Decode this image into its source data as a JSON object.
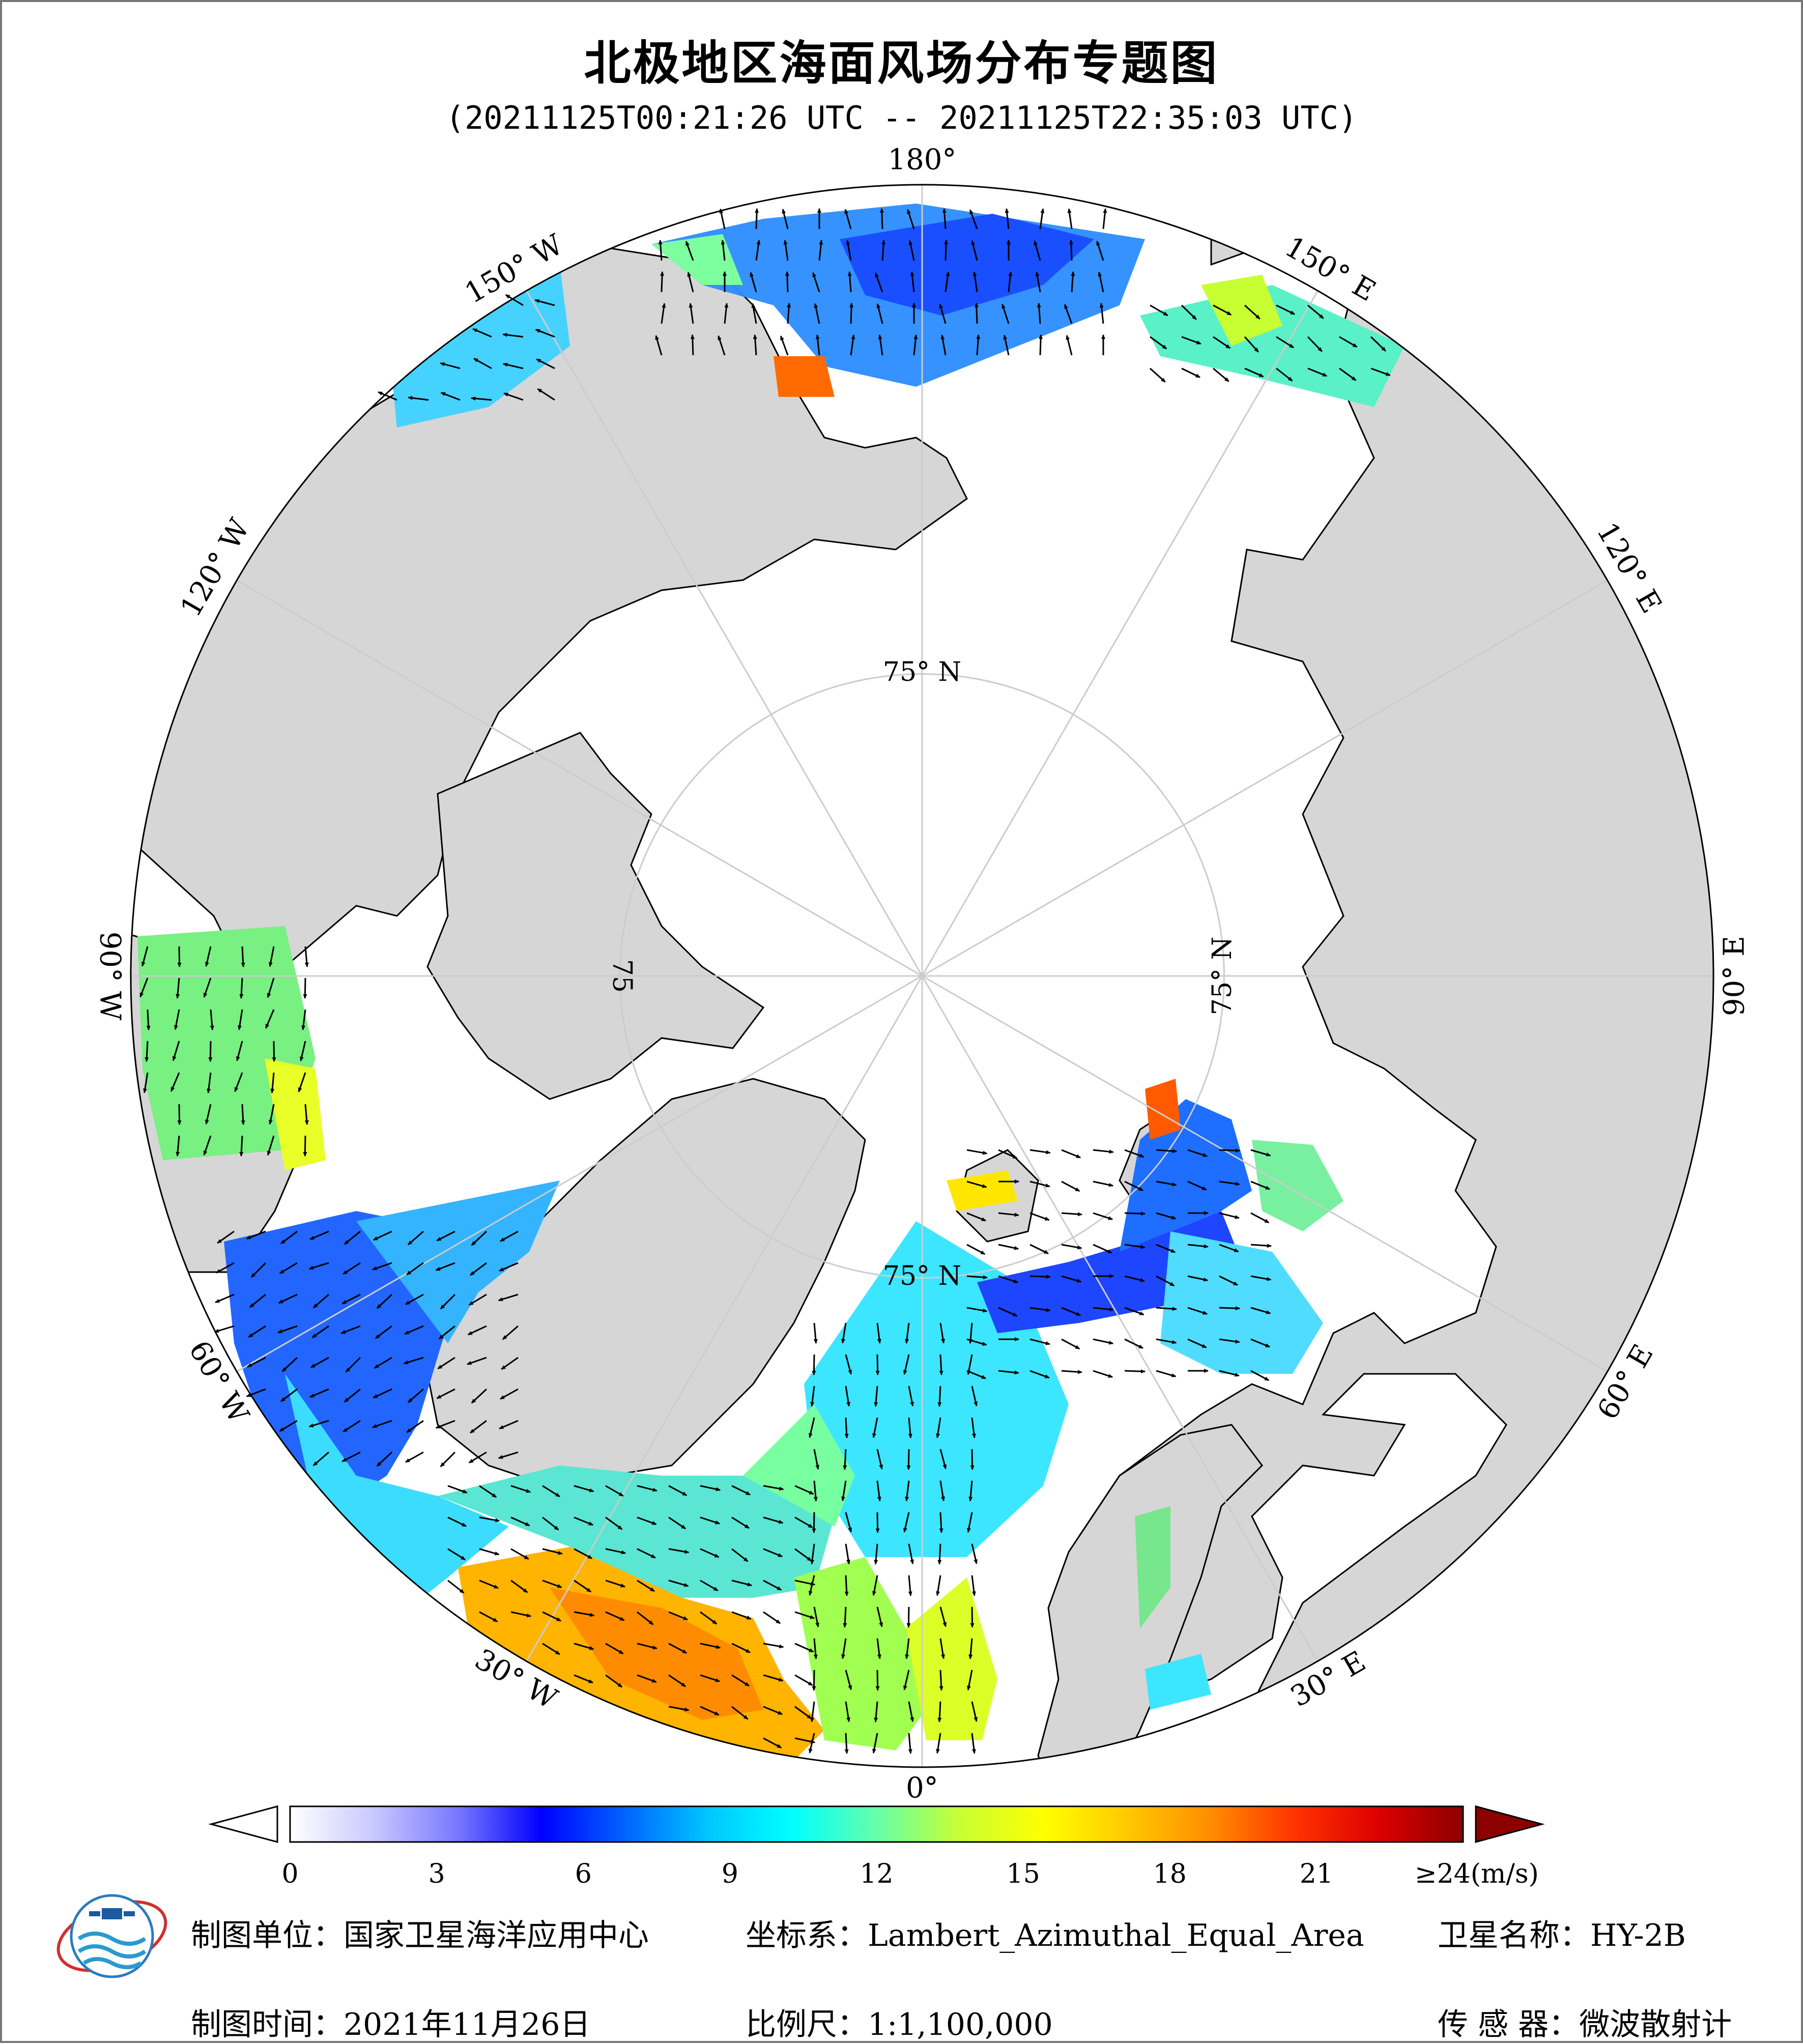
{
  "title": "北极地区海面风场分布专题图",
  "subtitle": "(20211125T00:21:26 UTC -- 20211125T22:35:03 UTC)",
  "map": {
    "projection": "Lambert_Azimuthal_Equal_Area",
    "center": "North Pole",
    "boundary_latitude": 50,
    "longitude_labels": [
      {
        "lon": 180,
        "text": "180°"
      },
      {
        "lon": -150,
        "text": "150° W"
      },
      {
        "lon": -120,
        "text": "120° W"
      },
      {
        "lon": -90,
        "text": "90° W"
      },
      {
        "lon": -60,
        "text": "60° W"
      },
      {
        "lon": -30,
        "text": "30° W"
      },
      {
        "lon": 0,
        "text": "0°"
      },
      {
        "lon": 30,
        "text": "30° E"
      },
      {
        "lon": 60,
        "text": "60° E"
      },
      {
        "lon": 90,
        "text": "90° E"
      },
      {
        "lon": 120,
        "text": "120° E"
      },
      {
        "lon": 150,
        "text": "150° E"
      }
    ],
    "latitude_labels": [
      {
        "lat": 75,
        "lon": 180,
        "text": "75° N"
      },
      {
        "lat": 75,
        "lon": 90,
        "text": "75° N"
      },
      {
        "lat": 75,
        "lon": 0,
        "text": "75° N"
      },
      {
        "lat": 75,
        "lon": -90,
        "text": "75"
      }
    ],
    "colors": {
      "land": "#d6d6d6",
      "ocean_no_data": "#ffffff",
      "coastline": "#000000",
      "graticule": "#cccccc"
    }
  },
  "colorbar": {
    "ticks": [
      "0",
      "3",
      "6",
      "9",
      "12",
      "15",
      "18",
      "21",
      "≥24(m/s)"
    ],
    "min": 0,
    "max": 24,
    "unit": "m/s",
    "stops": [
      "#ffffff",
      "#c8c8ff",
      "#7878ff",
      "#0000ff",
      "#0064ff",
      "#00c8ff",
      "#00ffff",
      "#64ffaa",
      "#c8ff32",
      "#ffff00",
      "#ffc800",
      "#ff8c00",
      "#ff3200",
      "#dc0000",
      "#8c0000"
    ],
    "extend_color": "#8c0000"
  },
  "footer": {
    "org": "制图单位：国家卫星海洋应用中心",
    "crs": "坐标系：Lambert_Azimuthal_Equal_Area",
    "satellite": "卫星名称：HY-2B",
    "date": "制图时间：2021年11月26日",
    "scale": "比例尺：1:1,100,000",
    "sensor": "传 感 器：微波散射计"
  }
}
